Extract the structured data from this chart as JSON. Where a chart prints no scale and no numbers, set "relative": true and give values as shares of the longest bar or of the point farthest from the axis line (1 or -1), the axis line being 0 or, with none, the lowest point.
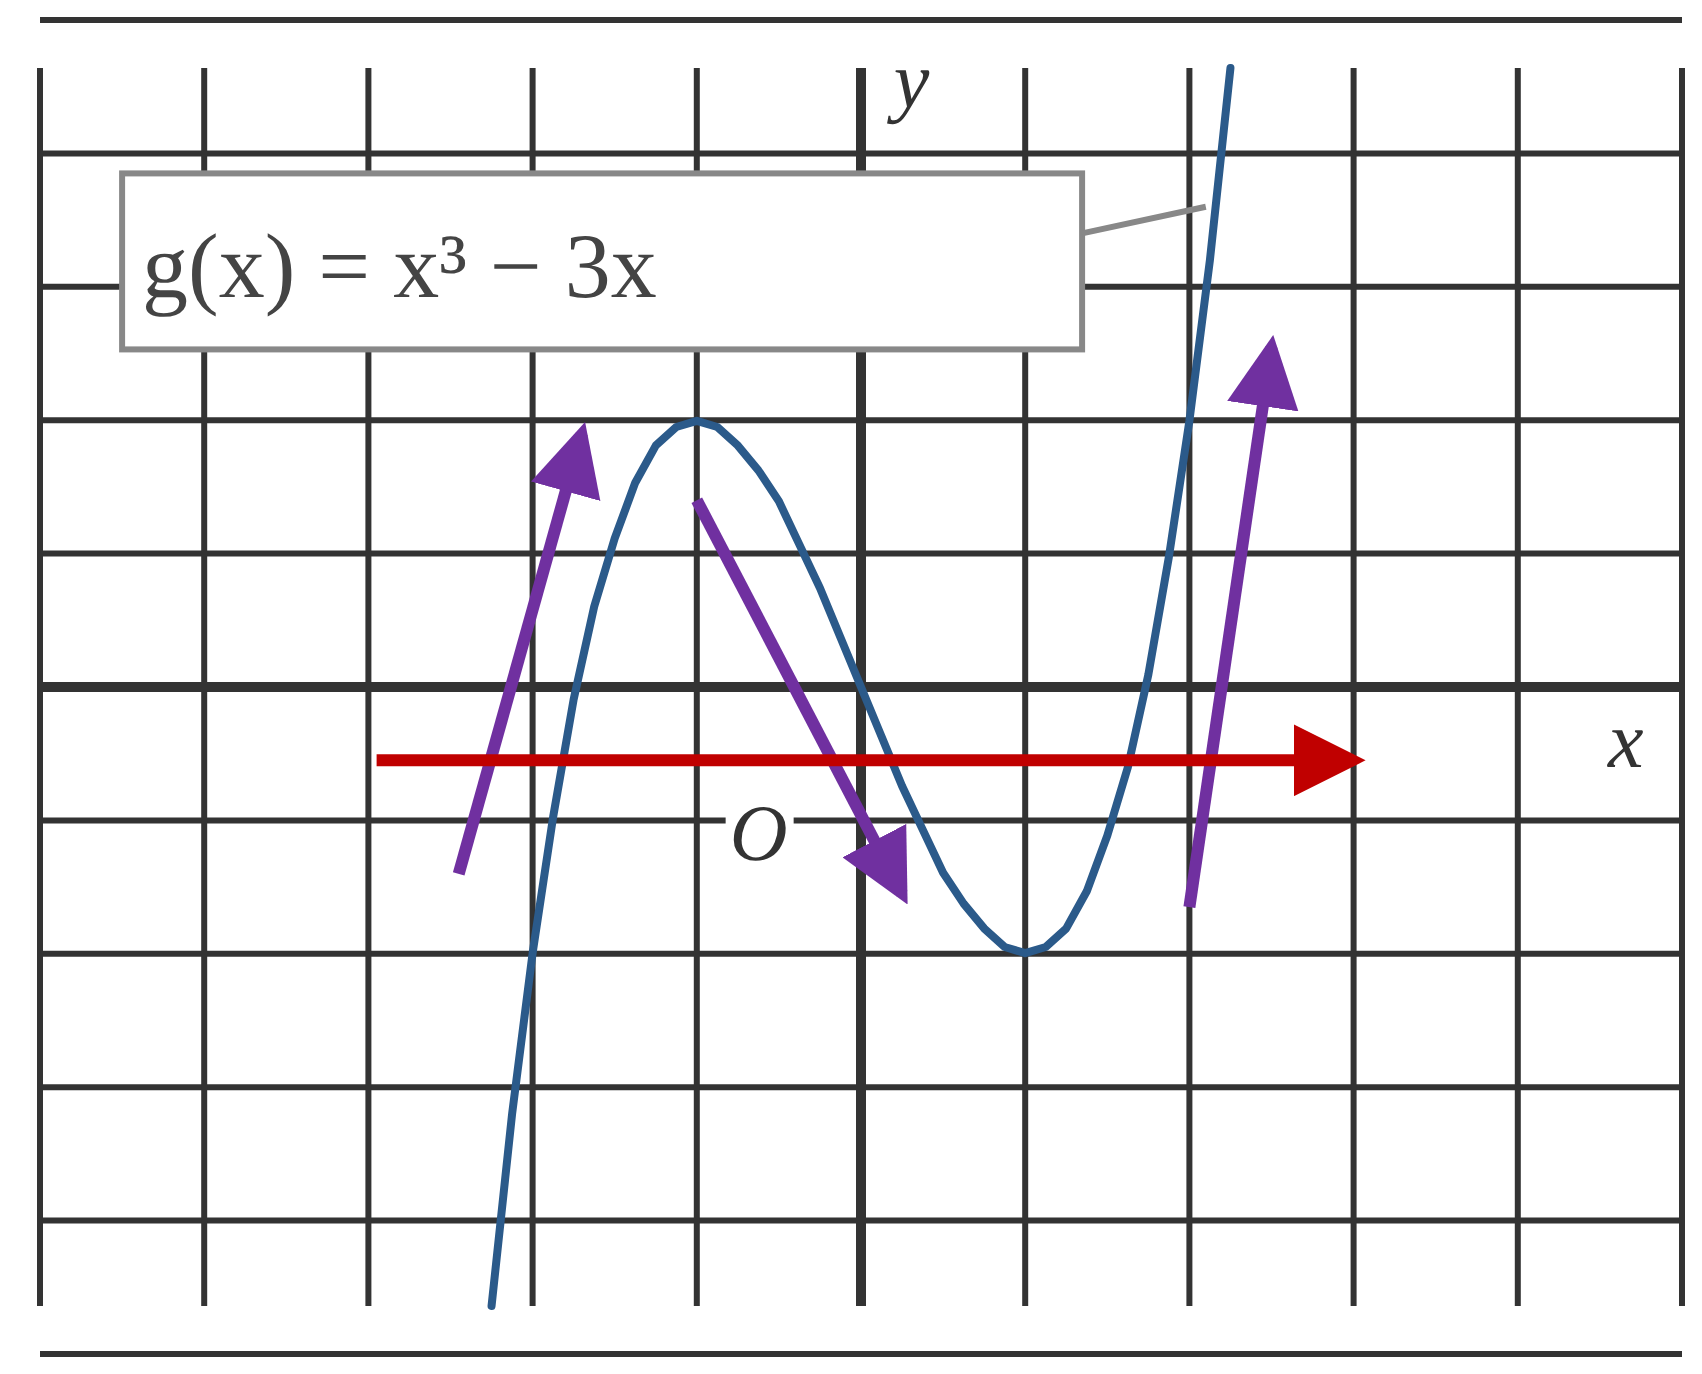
{
  "chart_data": {
    "type": "line",
    "xlabel": "x",
    "ylabel": "y",
    "relative": true,
    "categories": [
      null,
      null,
      null,
      null,
      null,
      null,
      null,
      null,
      null,
      null,
      null,
      null,
      null,
      null,
      null,
      null,
      null,
      null,
      null,
      null,
      null,
      null,
      null,
      null,
      null,
      null,
      null,
      null,
      null,
      null,
      null,
      null,
      null,
      null,
      null,
      null,
      null,
      null,
      null,
      null,
      null,
      null,
      null,
      null,
      null,
      null,
      null,
      null,
      null,
      null,
      null,
      null,
      null,
      null,
      null,
      null,
      null,
      null,
      null,
      null,
      null,
      null,
      null,
      null,
      null,
      null,
      null,
      null,
      null,
      null,
      null,
      null,
      null,
      null,
      null,
      null,
      null,
      null,
      null,
      null,
      null
    ],
    "series": [
      {
        "color": "#2b5a8a",
        "values": [
          null,
          null,
          null,
          null,
          null,
          null,
          null,
          null,
          null,
          null,
          null,
          null,
          null,
          null,
          null,
          null,
          null,
          null,
          null,
          null,
          null,
          null,
          -1,
          -0.69,
          -0.43,
          -0.21,
          -0.02,
          0.13,
          0.24,
          0.33,
          0.39,
          0.42,
          0.43,
          0.42,
          0.39,
          0.35,
          0.3,
          0.23,
          0.16,
          0.08,
          0,
          -0.08,
          -0.16,
          -0.23,
          -0.3,
          -0.35,
          -0.39,
          -0.42,
          -0.43,
          -0.42,
          -0.39,
          -0.33,
          -0.24,
          -0.13,
          0.02,
          0.21,
          0.43,
          0.69,
          1,
          null,
          null,
          null,
          null,
          null,
          null,
          null,
          null,
          null,
          null,
          null,
          null,
          null,
          null,
          null,
          null,
          null,
          null,
          null,
          null,
          null,
          null
        ]
      }
    ],
    "tick_labels": false,
    "grid": true,
    "marker": "none",
    "line_style": "solid",
    "legend": false,
    "annotations": [
      "g(x) = x³ − 3x",
      "O"
    ]
  }
}
